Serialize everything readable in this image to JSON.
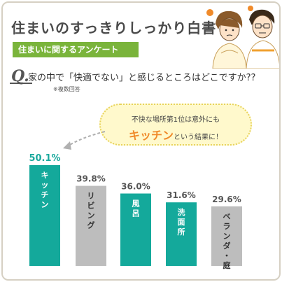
{
  "header": {
    "title": "住まいのすっきりしっかり白書",
    "subtitle": "住まいに関するアンケート"
  },
  "question": {
    "mark": "Q.",
    "text": "家の中で「快適でない」と感じるところはどこですか??",
    "note": "※複数回答"
  },
  "callout": {
    "line1": "不快な場所第1位は意外にも",
    "emphasis": "キッチン",
    "rest": "という結果に！"
  },
  "colors": {
    "accent_green": "#7ab43b",
    "bar_highlight": "#14a99b",
    "bar_neutral": "#bdbdbd",
    "pct_highlight": "#1aa99d",
    "pct_neutral": "#555555",
    "callout_emphasis": "#f08a2a"
  },
  "chart_data": {
    "type": "bar",
    "categories": [
      "キッチン",
      "リビング",
      "風呂",
      "洗面所",
      "ベランダ・庭"
    ],
    "values": [
      50.1,
      39.8,
      36.0,
      31.6,
      29.6
    ],
    "value_labels": [
      "50.1%",
      "39.8%",
      "36.0%",
      "31.6%",
      "29.6%"
    ],
    "highlight": [
      true,
      false,
      true,
      true,
      false
    ],
    "title": "",
    "xlabel": "",
    "ylabel": "",
    "ylim": [
      0,
      55
    ],
    "grid": false,
    "legend": "none"
  }
}
